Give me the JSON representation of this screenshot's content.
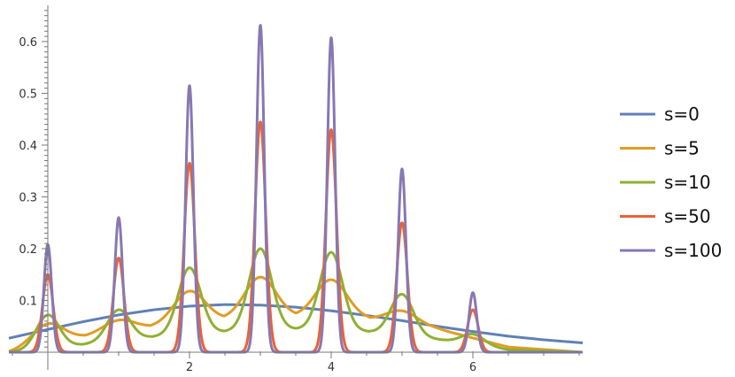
{
  "chart_data": {
    "type": "line",
    "title": "",
    "xlabel": "",
    "ylabel": "",
    "xlim": [
      -0.55,
      7.55
    ],
    "ylim": [
      0,
      0.67
    ],
    "x_ticks": [
      {
        "value": 2,
        "label": "2"
      },
      {
        "value": 4,
        "label": "4"
      },
      {
        "value": 6,
        "label": "6"
      }
    ],
    "y_ticks": [
      {
        "value": 0.1,
        "label": "0.1"
      },
      {
        "value": 0.2,
        "label": "0.2"
      },
      {
        "value": 0.3,
        "label": "0.3"
      },
      {
        "value": 0.4,
        "label": "0.4"
      },
      {
        "value": 0.5,
        "label": "0.5"
      },
      {
        "value": 0.6,
        "label": "0.6"
      }
    ],
    "grid": false,
    "legend_position": "right",
    "series": [
      {
        "name": "s=0",
        "color": "#5E81B5",
        "kind": "smooth",
        "x": [
          -0.55,
          0,
          0.5,
          1,
          1.5,
          2,
          2.5,
          3,
          3.5,
          4,
          4.5,
          5,
          5.5,
          6,
          6.5,
          7,
          7.55
        ],
        "y": [
          0.027,
          0.044,
          0.059,
          0.072,
          0.082,
          0.089,
          0.092,
          0.091,
          0.087,
          0.08,
          0.071,
          0.061,
          0.05,
          0.04,
          0.031,
          0.024,
          0.018
        ]
      },
      {
        "name": "s=5",
        "color": "#E19C24",
        "kind": "peaks",
        "baseline_x": [
          -0.55,
          0.5,
          1.5,
          2.5,
          3.5,
          4.5,
          5.5,
          6.5,
          7.55
        ],
        "baseline_y": [
          0.0,
          0.03,
          0.05,
          0.065,
          0.07,
          0.065,
          0.045,
          0.01,
          0.0
        ],
        "peak_x": [
          0,
          1,
          2,
          3,
          4,
          5,
          6
        ],
        "peak_y": [
          0.055,
          0.062,
          0.118,
          0.145,
          0.14,
          0.08,
          0.025
        ],
        "peak_width": 0.22
      },
      {
        "name": "s=10",
        "color": "#8FB032",
        "kind": "peaks",
        "baseline_x": [
          -0.55,
          0.5,
          1.5,
          2.5,
          3.5,
          4.5,
          5.5,
          6.5,
          7.55
        ],
        "baseline_y": [
          0.0,
          0.015,
          0.03,
          0.04,
          0.045,
          0.04,
          0.025,
          0.005,
          0.0
        ],
        "peak_x": [
          0,
          1,
          2,
          3,
          4,
          5,
          6
        ],
        "peak_y": [
          0.072,
          0.082,
          0.163,
          0.2,
          0.193,
          0.112,
          0.035
        ],
        "peak_width": 0.16
      },
      {
        "name": "s=50",
        "color": "#EB6235",
        "kind": "peaks",
        "baseline_x": [
          -0.55,
          7.55
        ],
        "baseline_y": [
          0.0,
          0.0
        ],
        "peak_x": [
          0,
          1,
          2,
          3,
          4,
          5,
          6
        ],
        "peak_y": [
          0.15,
          0.182,
          0.365,
          0.445,
          0.43,
          0.25,
          0.082
        ],
        "peak_width": 0.075
      },
      {
        "name": "s=100",
        "color": "#8778B3",
        "kind": "peaks",
        "baseline_x": [
          -0.55,
          7.55
        ],
        "baseline_y": [
          0.0,
          0.0
        ],
        "peak_x": [
          0,
          1,
          2,
          3,
          4,
          5,
          6
        ],
        "peak_y": [
          0.208,
          0.26,
          0.515,
          0.632,
          0.608,
          0.354,
          0.115
        ],
        "peak_width": 0.055
      }
    ]
  }
}
